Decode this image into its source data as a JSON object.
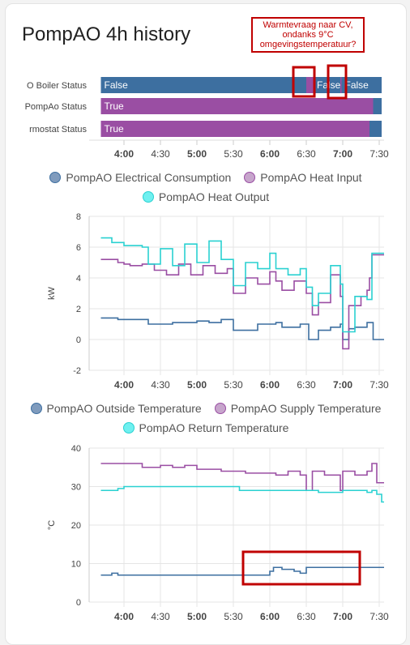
{
  "card": {
    "title": "PompAO 4h history"
  },
  "annotation": {
    "text": "Warmtevraag naar CV, ondanks 9°C omgevingstemperatuur?"
  },
  "colors": {
    "blue": "#3d6fa0",
    "purple": "#9a4ea3",
    "cyan": "#2ad1d1",
    "red": "#c00000"
  },
  "timeline": {
    "x_ticks": [
      "4:00",
      "4:30",
      "5:00",
      "5:30",
      "6:00",
      "6:30",
      "7:00",
      "7:30"
    ],
    "rows": [
      {
        "label": "O Boiler Status",
        "segments": [
          {
            "value": "False",
            "start": "3:41",
            "end": "6:30",
            "color": "blue"
          },
          {
            "value": "",
            "start": "6:30",
            "end": "6:36",
            "color": "purple"
          },
          {
            "value": "False",
            "start": "6:36",
            "end": "6:58",
            "color": "blue"
          },
          {
            "value": "",
            "start": "6:58",
            "end": "6:59",
            "color": "purple"
          },
          {
            "value": "False",
            "start": "6:59",
            "end": "7:32",
            "color": "blue"
          }
        ]
      },
      {
        "label": "PompAo Status",
        "segments": [
          {
            "value": "True",
            "start": "3:41",
            "end": "7:25",
            "color": "purple"
          },
          {
            "value": "",
            "start": "7:25",
            "end": "7:32",
            "color": "blue"
          }
        ]
      },
      {
        "label": "rmostat Status",
        "segments": [
          {
            "value": "True",
            "start": "3:41",
            "end": "7:22",
            "color": "purple"
          },
          {
            "value": "",
            "start": "7:22",
            "end": "7:32",
            "color": "blue"
          }
        ]
      }
    ]
  },
  "chart_data": [
    {
      "type": "line",
      "ylabel": "kW",
      "ylim": [
        -2,
        8
      ],
      "y_ticks": [
        "8",
        "6",
        "4",
        "2",
        "0",
        "-2"
      ],
      "x_ticks": [
        "4:00",
        "4:30",
        "5:00",
        "5:30",
        "6:00",
        "6:30",
        "7:00",
        "7:30"
      ],
      "legend": [
        "PompAO Electrical Consumption",
        "PompAO Heat Input",
        "PompAO Heat Output"
      ],
      "series": [
        {
          "name": "PompAO Electrical Consumption",
          "color": "blue",
          "x": [
            "3:41",
            "3:55",
            "4:00",
            "4:15",
            "4:20",
            "4:40",
            "5:00",
            "5:10",
            "5:20",
            "5:30",
            "5:50",
            "6:05",
            "6:10",
            "6:25",
            "6:30",
            "6:32",
            "6:40",
            "6:50",
            "6:58",
            "7:00",
            "7:05",
            "7:10",
            "7:20",
            "7:25",
            "7:30"
          ],
          "y": [
            1.4,
            1.3,
            1.3,
            1.3,
            1.0,
            1.1,
            1.2,
            1.1,
            1.3,
            0.6,
            1.0,
            1.1,
            0.8,
            1.0,
            1.0,
            0.0,
            0.6,
            0.8,
            1.0,
            0.0,
            0.7,
            0.8,
            1.1,
            0.0,
            0.0
          ]
        },
        {
          "name": "PompAO Heat Input",
          "color": "purple",
          "x": [
            "3:41",
            "3:55",
            "4:00",
            "4:05",
            "4:15",
            "4:25",
            "4:35",
            "4:45",
            "4:55",
            "5:05",
            "5:15",
            "5:25",
            "5:30",
            "5:40",
            "5:50",
            "6:00",
            "6:05",
            "6:10",
            "6:20",
            "6:30",
            "6:35",
            "6:40",
            "6:50",
            "6:58",
            "7:00",
            "7:05",
            "7:15",
            "7:20",
            "7:22",
            "7:24"
          ],
          "y": [
            5.2,
            5.0,
            4.9,
            4.8,
            4.9,
            4.5,
            4.2,
            4.9,
            4.2,
            4.8,
            4.3,
            4.6,
            3.0,
            4.0,
            3.6,
            4.4,
            3.8,
            3.2,
            3.8,
            3.0,
            1.6,
            2.4,
            4.2,
            2.8,
            -0.6,
            2.2,
            2.8,
            3.2,
            4.0,
            5.5
          ]
        },
        {
          "name": "PompAO Heat Output",
          "color": "cyan",
          "x": [
            "3:41",
            "3:50",
            "4:00",
            "4:15",
            "4:20",
            "4:30",
            "4:40",
            "4:50",
            "5:00",
            "5:10",
            "5:20",
            "5:30",
            "5:40",
            "5:50",
            "6:00",
            "6:05",
            "6:15",
            "6:25",
            "6:30",
            "6:35",
            "6:40",
            "6:50",
            "6:58",
            "7:00",
            "7:10",
            "7:20",
            "7:24"
          ],
          "y": [
            6.6,
            6.3,
            6.1,
            6.0,
            4.9,
            5.9,
            4.8,
            6.2,
            5.0,
            6.4,
            5.2,
            3.5,
            5.0,
            4.6,
            5.6,
            4.6,
            4.2,
            4.6,
            3.4,
            2.2,
            3.0,
            4.8,
            3.6,
            0.5,
            2.8,
            2.6,
            5.6
          ]
        }
      ]
    },
    {
      "type": "line",
      "ylabel": "°C",
      "ylim": [
        0,
        40
      ],
      "y_ticks": [
        "40",
        "30",
        "20",
        "10",
        "0"
      ],
      "x_ticks": [
        "4:00",
        "4:30",
        "5:00",
        "5:30",
        "6:00",
        "6:30",
        "7:00",
        "7:30"
      ],
      "legend": [
        "PompAO Outside Temperature",
        "PompAO Supply Temperature",
        "PompAO Return Temperature"
      ],
      "series": [
        {
          "name": "PompAO Outside Temperature",
          "color": "blue",
          "x": [
            "3:41",
            "3:50",
            "3:55",
            "4:00",
            "5:00",
            "6:00",
            "6:03",
            "6:10",
            "6:20",
            "6:25",
            "6:30",
            "7:00",
            "7:32"
          ],
          "y": [
            7.0,
            7.5,
            7.0,
            7.0,
            7.0,
            8.0,
            9.0,
            8.5,
            8.0,
            7.5,
            9.0,
            9.0,
            9.0
          ]
        },
        {
          "name": "PompAO Supply Temperature",
          "color": "purple",
          "x": [
            "3:41",
            "4:00",
            "4:10",
            "4:15",
            "4:20",
            "4:30",
            "4:40",
            "4:50",
            "5:00",
            "5:10",
            "5:20",
            "5:30",
            "5:40",
            "5:50",
            "6:00",
            "6:05",
            "6:15",
            "6:25",
            "6:30",
            "6:35",
            "6:45",
            "6:58",
            "7:00",
            "7:10",
            "7:20",
            "7:24",
            "7:28",
            "7:32"
          ],
          "y": [
            36,
            36,
            36,
            35,
            35,
            35.5,
            35,
            35.5,
            34.5,
            34.5,
            34,
            34,
            33.5,
            33.5,
            33.5,
            33,
            34,
            33,
            29,
            34,
            33,
            29,
            34,
            33,
            34,
            36,
            31,
            31
          ]
        },
        {
          "name": "PompAO Return Temperature",
          "color": "cyan",
          "x": [
            "3:41",
            "3:55",
            "4:00",
            "5:00",
            "5:30",
            "5:35",
            "6:00",
            "6:10",
            "6:30",
            "6:40",
            "7:00",
            "7:10",
            "7:20",
            "7:24",
            "7:28",
            "7:32"
          ],
          "y": [
            29,
            29.5,
            30,
            30,
            30,
            29,
            29,
            29,
            29,
            28.5,
            29,
            29,
            28.5,
            29,
            28,
            26
          ]
        }
      ]
    }
  ]
}
